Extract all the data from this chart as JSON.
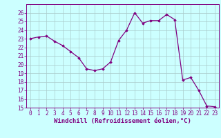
{
  "x": [
    0,
    1,
    2,
    3,
    4,
    5,
    6,
    7,
    8,
    9,
    10,
    11,
    12,
    13,
    14,
    15,
    16,
    17,
    18,
    19,
    20,
    21,
    22,
    23
  ],
  "y": [
    23.0,
    23.2,
    23.3,
    22.7,
    22.2,
    21.5,
    20.8,
    19.5,
    19.3,
    19.5,
    20.3,
    22.8,
    24.0,
    26.0,
    24.8,
    25.1,
    25.1,
    25.8,
    25.2,
    18.2,
    18.5,
    17.0,
    15.2,
    15.1
  ],
  "line_color": "#800080",
  "marker": "D",
  "marker_size": 1.8,
  "background_color": "#ccffff",
  "grid_color": "#aacccc",
  "xlabel": "Windchill (Refroidissement éolien,°C)",
  "xlabel_color": "#800080",
  "xlabel_fontsize": 6.5,
  "ylim": [
    15,
    27
  ],
  "yticks": [
    15,
    16,
    17,
    18,
    19,
    20,
    21,
    22,
    23,
    24,
    25,
    26
  ],
  "xticks": [
    0,
    1,
    2,
    3,
    4,
    5,
    6,
    7,
    8,
    9,
    10,
    11,
    12,
    13,
    14,
    15,
    16,
    17,
    18,
    19,
    20,
    21,
    22,
    23
  ],
  "tick_color": "#800080",
  "tick_fontsize": 5.5,
  "spine_color": "#800080",
  "linewidth": 0.9
}
